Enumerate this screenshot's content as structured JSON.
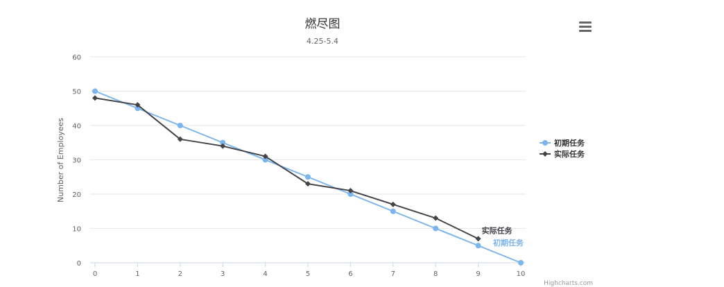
{
  "chart_data": {
    "type": "line",
    "title": "燃尽图",
    "subtitle": "4.25-5.4",
    "xlabel": "",
    "ylabel": "Number of Employees",
    "x": [
      0,
      1,
      2,
      3,
      4,
      5,
      6,
      7,
      8,
      9,
      10
    ],
    "ylim": [
      0,
      60
    ],
    "yticks": [
      0,
      10,
      20,
      30,
      40,
      50,
      60
    ],
    "grid": true,
    "legend_position": "right",
    "series": [
      {
        "name": "初期任务",
        "color": "#7cb5ec",
        "marker": "circle",
        "values": [
          50,
          45,
          40,
          35,
          30,
          25,
          20,
          15,
          10,
          5,
          0
        ]
      },
      {
        "name": "实际任务",
        "color": "#434348",
        "marker": "diamond",
        "values": [
          48,
          46,
          36,
          34,
          31,
          23,
          21,
          17,
          13,
          7,
          null
        ]
      }
    ],
    "credits": "Highcharts.com"
  },
  "icons": {
    "menu": "menu-icon"
  }
}
